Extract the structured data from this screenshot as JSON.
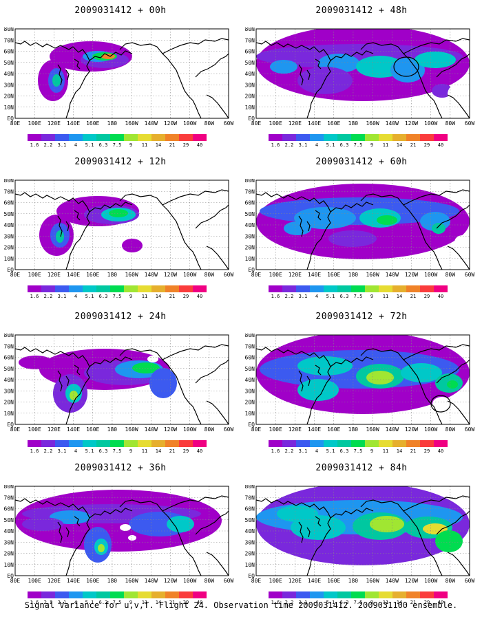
{
  "panels": [
    {
      "title": "2009031412 + 00h"
    },
    {
      "title": "2009031412 + 48h"
    },
    {
      "title": "2009031412 + 12h"
    },
    {
      "title": "2009031412 + 60h"
    },
    {
      "title": "2009031412 + 24h"
    },
    {
      "title": "2009031412 + 72h"
    },
    {
      "title": "2009031412 + 36h"
    },
    {
      "title": "2009031412 + 84h"
    }
  ],
  "axes": {
    "lat_labels": [
      "80N",
      "70N",
      "60N",
      "50N",
      "40N",
      "30N",
      "20N",
      "10N",
      "EQ"
    ],
    "lon_labels": [
      "80E",
      "100E",
      "120E",
      "140E",
      "160E",
      "180",
      "160W",
      "140W",
      "120W",
      "100W",
      "80W",
      "60W"
    ]
  },
  "colorbar": {
    "ticks": [
      "1.6",
      "2.2",
      "3.1",
      "4",
      "5.1",
      "6.3",
      "7.5",
      "9",
      "11",
      "14",
      "21",
      "29",
      "40"
    ],
    "colors": [
      "#a000c8",
      "#7a28dc",
      "#3c5af0",
      "#1e96f0",
      "#00c8c8",
      "#00c8a0",
      "#00dc50",
      "#a0e632",
      "#e6dc32",
      "#e6af2d",
      "#f08228",
      "#fa3c3c",
      "#f00082"
    ]
  },
  "footer": "Signal Variance for u,v,T. Flight 24. Observation time 2009031412. 2009031100 ensemble."
}
